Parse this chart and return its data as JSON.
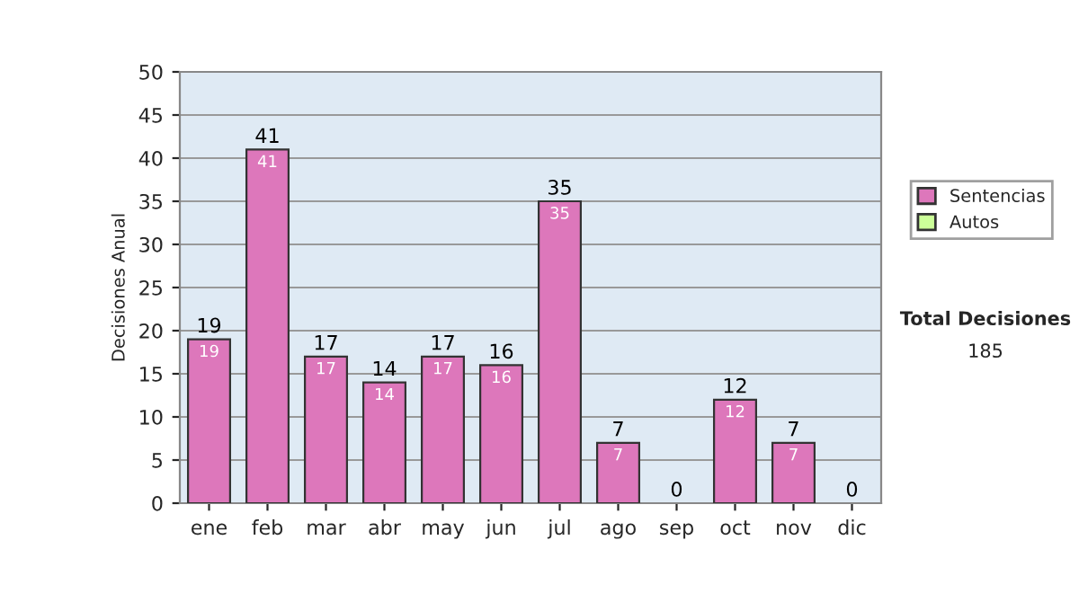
{
  "chart_data": {
    "type": "bar",
    "stacked": true,
    "categories": [
      "ene",
      "feb",
      "mar",
      "abr",
      "may",
      "jun",
      "jul",
      "ago",
      "sep",
      "oct",
      "nov",
      "dic"
    ],
    "series": [
      {
        "name": "Sentencias",
        "color": "#dd77bb",
        "values": [
          19,
          41,
          17,
          14,
          17,
          16,
          35,
          7,
          0,
          12,
          7,
          0
        ],
        "value_labels": [
          "19",
          "41",
          "17",
          "14",
          "17",
          "16",
          "35",
          "7",
          null,
          "12",
          "7",
          null
        ]
      },
      {
        "name": "Autos",
        "color": "#ccff99",
        "values": [
          0,
          0,
          0,
          0,
          0,
          0,
          0,
          0,
          0,
          0,
          0,
          0
        ]
      }
    ],
    "totals": [
      "19",
      "41",
      "17",
      "14",
      "17",
      "16",
      "35",
      "7",
      "0",
      "12",
      "7",
      "0"
    ],
    "ylabel": "Decisiones Anual",
    "ylim": [
      0,
      50
    ],
    "yticks": [
      0,
      5,
      10,
      15,
      20,
      25,
      30,
      35,
      40,
      45,
      50
    ],
    "grid": "y",
    "legend": "right",
    "annotations": [
      "Total Decisiones",
      "185"
    ]
  }
}
